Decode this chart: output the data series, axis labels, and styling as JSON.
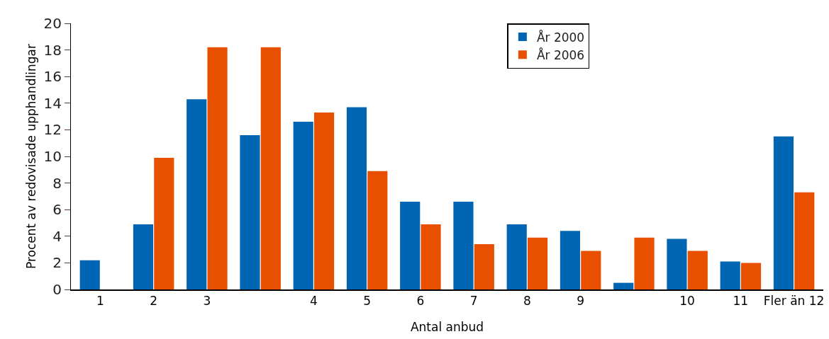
{
  "chart_data": {
    "type": "bar",
    "xlabel": "Antal anbud",
    "ylabel": "Procent av redovisade upphandlingar",
    "categories": [
      "1",
      "2",
      "3",
      null,
      "4",
      "5",
      "6",
      "7",
      "8",
      "9",
      null,
      "10",
      "11",
      "Fler än 12"
    ],
    "series": [
      {
        "name": "År 2000",
        "color": "#0066b3",
        "values": [
          2.2,
          4.9,
          14.3,
          11.6,
          12.6,
          13.7,
          6.6,
          6.6,
          4.9,
          4.4,
          0.5,
          3.8,
          2.1,
          11.5
        ]
      },
      {
        "name": "År 2006",
        "color": "#e85000",
        "values": [
          0,
          9.9,
          18.2,
          18.2,
          13.3,
          8.9,
          4.9,
          3.4,
          3.9,
          2.9,
          3.9,
          2.9,
          2.0,
          7.3
        ]
      }
    ],
    "ylim": [
      0,
      20
    ],
    "yticks": [
      0,
      2,
      4,
      6,
      8,
      10,
      12,
      14,
      16,
      18,
      20
    ],
    "grid": false,
    "legend": "top right"
  }
}
